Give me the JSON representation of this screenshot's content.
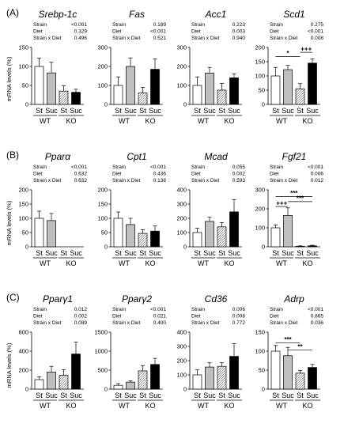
{
  "figure": {
    "group_labels": [
      "WT",
      "KO"
    ],
    "x_ticks": [
      "St",
      "Suc",
      "St",
      "Suc"
    ],
    "ylabel": "mRNA levels (%)",
    "stats_labels": [
      "Strain",
      "Diet",
      "Strain x Diet"
    ]
  },
  "panels": [
    {
      "label": "(A)"
    },
    {
      "label": "(B)"
    },
    {
      "label": "(C)"
    }
  ],
  "colors": {
    "st_wt": "#ffffff",
    "suc_wt": "#bfbfbf",
    "st_ko": "hatched",
    "suc_ko": "#000000"
  },
  "chart_data": [
    {
      "type": "bar",
      "panel": 0,
      "title": "Srebp-1c",
      "categories": [
        "St",
        "Suc",
        "St",
        "Suc"
      ],
      "groups": [
        "WT",
        "KO"
      ],
      "values": [
        100,
        83,
        35,
        32
      ],
      "errors": [
        22,
        28,
        14,
        8
      ],
      "ylim": [
        0,
        150
      ],
      "yticks": [
        0,
        50,
        100,
        150
      ],
      "stats": {
        "Strain": "<0.001",
        "Diet": "0.329",
        "Strain x Diet": "0.496"
      },
      "brackets": []
    },
    {
      "type": "bar",
      "panel": 0,
      "title": "Fas",
      "categories": [
        "St",
        "Suc",
        "St",
        "Suc"
      ],
      "groups": [
        "WT",
        "KO"
      ],
      "values": [
        100,
        200,
        60,
        185
      ],
      "errors": [
        45,
        45,
        30,
        55
      ],
      "ylim": [
        0,
        300
      ],
      "yticks": [
        0,
        100,
        200,
        300
      ],
      "stats": {
        "Strain": "0.189",
        "Diet": "<0.001",
        "Strain x Diet": "0.521"
      },
      "brackets": []
    },
    {
      "type": "bar",
      "panel": 0,
      "title": "Acc1",
      "categories": [
        "St",
        "Suc",
        "St",
        "Suc"
      ],
      "groups": [
        "WT",
        "KO"
      ],
      "values": [
        100,
        165,
        75,
        140
      ],
      "errors": [
        45,
        30,
        35,
        20
      ],
      "ylim": [
        0,
        300
      ],
      "yticks": [
        0,
        100,
        200,
        300
      ],
      "stats": {
        "Strain": "0.223",
        "Diet": "0.003",
        "Strain x Diet": "0.940"
      },
      "brackets": []
    },
    {
      "type": "bar",
      "panel": 0,
      "title": "Scd1",
      "categories": [
        "St",
        "Suc",
        "St",
        "Suc"
      ],
      "groups": [
        "WT",
        "KO"
      ],
      "values": [
        100,
        122,
        55,
        145
      ],
      "errors": [
        30,
        15,
        18,
        15
      ],
      "ylim": [
        0,
        200
      ],
      "yticks": [
        0,
        50,
        100,
        150,
        200
      ],
      "stats": {
        "Strain": "0.275",
        "Diet": "<0.001",
        "Strain x Diet": "0.008"
      },
      "brackets": [
        {
          "from": 0,
          "to": 2,
          "y": 168,
          "label": "*"
        },
        {
          "from": 2,
          "to": 3,
          "y": 183,
          "label": "+++"
        }
      ]
    },
    {
      "type": "bar",
      "panel": 1,
      "title": "Pparα",
      "categories": [
        "St",
        "Suc",
        "St",
        "Suc"
      ],
      "groups": [
        "WT",
        "KO"
      ],
      "values": [
        100,
        92,
        0,
        0
      ],
      "errors": [
        25,
        25,
        0,
        0
      ],
      "ylim": [
        0,
        200
      ],
      "yticks": [
        0,
        50,
        100,
        150,
        200
      ],
      "stats": {
        "Strain": "<0.001",
        "Diet": "0.632",
        "Strain x Diet": "0.632"
      },
      "brackets": []
    },
    {
      "type": "bar",
      "panel": 1,
      "title": "Cpt1",
      "categories": [
        "St",
        "Suc",
        "St",
        "Suc"
      ],
      "groups": [
        "WT",
        "KO"
      ],
      "values": [
        100,
        78,
        47,
        55
      ],
      "errors": [
        22,
        22,
        13,
        18
      ],
      "ylim": [
        0,
        200
      ],
      "yticks": [
        0,
        50,
        100,
        150,
        200
      ],
      "stats": {
        "Strain": "<0.001",
        "Diet": "0.436",
        "Strain x Diet": "0.138"
      },
      "brackets": []
    },
    {
      "type": "bar",
      "panel": 1,
      "title": "Mcad",
      "categories": [
        "St",
        "Suc",
        "St",
        "Suc"
      ],
      "groups": [
        "WT",
        "KO"
      ],
      "values": [
        100,
        178,
        140,
        245
      ],
      "errors": [
        30,
        30,
        30,
        85
      ],
      "ylim": [
        0,
        400
      ],
      "yticks": [
        0,
        100,
        200,
        300,
        400
      ],
      "stats": {
        "Strain": "0.055",
        "Diet": "0.002",
        "Strain x Diet": "0.593"
      },
      "brackets": []
    },
    {
      "type": "bar",
      "panel": 1,
      "title": "Fgf21",
      "categories": [
        "St",
        "Suc",
        "St",
        "Suc"
      ],
      "groups": [
        "WT",
        "KO"
      ],
      "values": [
        100,
        165,
        3,
        5
      ],
      "errors": [
        15,
        40,
        2,
        3
      ],
      "ylim": [
        0,
        300
      ],
      "yticks": [
        0,
        100,
        200,
        300
      ],
      "stats": {
        "Strain": "<0.001",
        "Diet": "0.006",
        "Strain x Diet": "0.012"
      },
      "brackets": [
        {
          "from": 0,
          "to": 3,
          "y": 265,
          "label": "***"
        },
        {
          "from": 1,
          "to": 3,
          "y": 238,
          "label": "***"
        },
        {
          "from": 0,
          "to": 1,
          "y": 212,
          "label": "+++"
        }
      ]
    },
    {
      "type": "bar",
      "panel": 2,
      "title": "Pparγ1",
      "categories": [
        "St",
        "Suc",
        "St",
        "Suc"
      ],
      "groups": [
        "WT",
        "KO"
      ],
      "values": [
        100,
        180,
        145,
        370
      ],
      "errors": [
        30,
        60,
        60,
        125
      ],
      "ylim": [
        0,
        600
      ],
      "yticks": [
        0,
        200,
        400,
        600
      ],
      "stats": {
        "Strain": "0.012",
        "Diet": "0.002",
        "Strain x Diet": "0.089"
      },
      "brackets": []
    },
    {
      "type": "bar",
      "panel": 2,
      "title": "Pparγ2",
      "categories": [
        "St",
        "Suc",
        "St",
        "Suc"
      ],
      "groups": [
        "WT",
        "KO"
      ],
      "values": [
        100,
        185,
        480,
        650
      ],
      "errors": [
        45,
        30,
        140,
        160
      ],
      "ylim": [
        0,
        1500
      ],
      "yticks": [
        0,
        500,
        1000,
        1500
      ],
      "stats": {
        "Strain": "<0.001",
        "Diet": "0.021",
        "Strain x Diet": "0.400"
      },
      "brackets": []
    },
    {
      "type": "bar",
      "panel": 2,
      "title": "Cd36",
      "categories": [
        "St",
        "Suc",
        "St",
        "Suc"
      ],
      "groups": [
        "WT",
        "KO"
      ],
      "values": [
        100,
        155,
        160,
        230
      ],
      "errors": [
        35,
        30,
        25,
        90
      ],
      "ylim": [
        0,
        400
      ],
      "yticks": [
        0,
        100,
        200,
        300,
        400
      ],
      "stats": {
        "Strain": "0.006",
        "Diet": "0.008",
        "Strain x Diet": "0.772"
      },
      "brackets": []
    },
    {
      "type": "bar",
      "panel": 2,
      "title": "Adrp",
      "categories": [
        "St",
        "Suc",
        "St",
        "Suc"
      ],
      "groups": [
        "WT",
        "KO"
      ],
      "values": [
        100,
        88,
        42,
        57
      ],
      "errors": [
        15,
        22,
        7,
        8
      ],
      "ylim": [
        0,
        150
      ],
      "yticks": [
        0,
        50,
        100,
        150
      ],
      "stats": {
        "Strain": "<0.001",
        "Diet": "0.865",
        "Strain x Diet": "0.036"
      },
      "brackets": [
        {
          "from": 0,
          "to": 2,
          "y": 122,
          "label": "***"
        },
        {
          "from": 1,
          "to": 3,
          "y": 103,
          "label": "**"
        }
      ]
    }
  ]
}
